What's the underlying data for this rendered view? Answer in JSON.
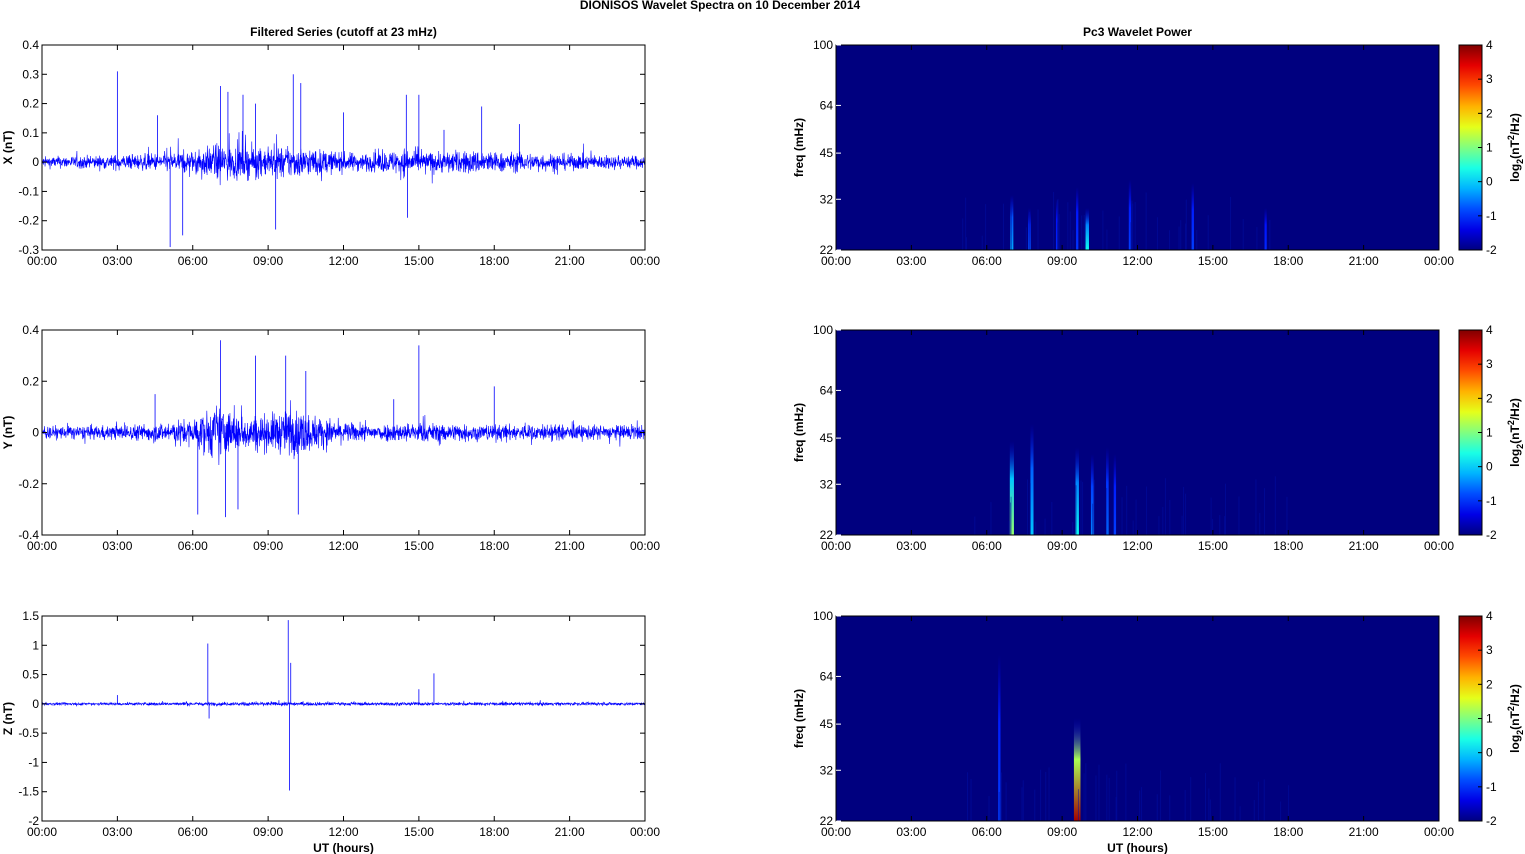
{
  "figure_title": "DIONISOS Wavelet Spectra on 10 December  2014",
  "left_title": "Filtered Series (cutoff at 23 mHz)",
  "right_title": "Pc3 Wavelet Power",
  "xlabel": "UT (hours)",
  "freq_label": "freq (mHz)",
  "colorbar_label": {
    "base": "log",
    "sub": "2",
    "pre": "(nT",
    "sup": "2",
    "post": "/Hz)"
  },
  "colors": {
    "trace": "#0000ff",
    "background": "#00007f"
  },
  "chart_data": [
    {
      "type": "line",
      "panel": "X",
      "title": "Filtered Series (cutoff at 23 mHz)",
      "ylabel": "X (nT)",
      "ylim": [
        -0.3,
        0.4
      ],
      "yticks": [
        "0.4",
        "0.3",
        "0.2",
        "0.1",
        "0",
        "-0.1",
        "-0.2",
        "-0.3"
      ],
      "xticks": [
        "00:00",
        "03:00",
        "06:00",
        "09:00",
        "12:00",
        "15:00",
        "18:00",
        "21:00",
        "00:00"
      ],
      "xlim_hours": [
        0,
        24
      ],
      "baseline_amplitude": 0.03,
      "envelope": [
        [
          0,
          0.035
        ],
        [
          2,
          0.04
        ],
        [
          4,
          0.05
        ],
        [
          5,
          0.06
        ],
        [
          6,
          0.07
        ],
        [
          7,
          0.11
        ],
        [
          8,
          0.1
        ],
        [
          9,
          0.09
        ],
        [
          10,
          0.1
        ],
        [
          11,
          0.08
        ],
        [
          12,
          0.06
        ],
        [
          13,
          0.055
        ],
        [
          14,
          0.07
        ],
        [
          14.5,
          0.09
        ],
        [
          15,
          0.06
        ],
        [
          16,
          0.07
        ],
        [
          17,
          0.07
        ],
        [
          17.7,
          0.08
        ],
        [
          18,
          0.06
        ],
        [
          19,
          0.06
        ],
        [
          20,
          0.055
        ],
        [
          21,
          0.05
        ],
        [
          22,
          0.045
        ],
        [
          24,
          0.04
        ]
      ],
      "spikes": [
        [
          3,
          0.31
        ],
        [
          4.6,
          0.16
        ],
        [
          5.1,
          -0.29
        ],
        [
          5.6,
          -0.25
        ],
        [
          7.1,
          0.26
        ],
        [
          7.4,
          0.24
        ],
        [
          8,
          0.23
        ],
        [
          8.5,
          0.2
        ],
        [
          9.3,
          -0.23
        ],
        [
          10,
          0.3
        ],
        [
          10.3,
          0.27
        ],
        [
          12,
          0.17
        ],
        [
          14.5,
          0.23
        ],
        [
          14.55,
          -0.19
        ],
        [
          15,
          0.23
        ],
        [
          16,
          0.11
        ],
        [
          17.5,
          0.19
        ],
        [
          19,
          0.13
        ]
      ]
    },
    {
      "type": "line",
      "panel": "Y",
      "title": "",
      "ylabel": "Y (nT)",
      "ylim": [
        -0.4,
        0.4
      ],
      "yticks": [
        "0.4",
        "0.2",
        "0",
        "-0.2",
        "-0.4"
      ],
      "xticks": [
        "00:00",
        "03:00",
        "06:00",
        "09:00",
        "12:00",
        "15:00",
        "18:00",
        "21:00",
        "00:00"
      ],
      "xlim_hours": [
        0,
        24
      ],
      "baseline_amplitude": 0.04,
      "envelope": [
        [
          0,
          0.045
        ],
        [
          3,
          0.05
        ],
        [
          5,
          0.07
        ],
        [
          6,
          0.1
        ],
        [
          7,
          0.2
        ],
        [
          7.5,
          0.15
        ],
        [
          8,
          0.12
        ],
        [
          9,
          0.13
        ],
        [
          10,
          0.17
        ],
        [
          11,
          0.12
        ],
        [
          12,
          0.07
        ],
        [
          13,
          0.06
        ],
        [
          15,
          0.07
        ],
        [
          17,
          0.06
        ],
        [
          20,
          0.055
        ],
        [
          24,
          0.05
        ]
      ],
      "spikes": [
        [
          6.2,
          -0.32
        ],
        [
          7.1,
          0.36
        ],
        [
          7.3,
          -0.33
        ],
        [
          7.8,
          -0.3
        ],
        [
          8.5,
          0.3
        ],
        [
          9.7,
          0.3
        ],
        [
          10.2,
          -0.32
        ],
        [
          10.5,
          0.24
        ],
        [
          15,
          0.34
        ],
        [
          14,
          0.13
        ],
        [
          4.5,
          0.15
        ],
        [
          18,
          0.18
        ]
      ]
    },
    {
      "type": "line",
      "panel": "Z",
      "title": "",
      "ylabel": "Z (nT)",
      "ylim": [
        -2,
        1.5
      ],
      "yticks": [
        "1.5",
        "1",
        "0.5",
        "0",
        "-0.5",
        "-1",
        "-1.5",
        "-2"
      ],
      "xticks": [
        "00:00",
        "03:00",
        "06:00",
        "09:00",
        "12:00",
        "15:00",
        "18:00",
        "21:00",
        "00:00"
      ],
      "xlabel": "UT (hours)",
      "xlim_hours": [
        0,
        24
      ],
      "baseline_amplitude": 0.035,
      "envelope": [
        [
          0,
          0.04
        ],
        [
          6,
          0.05
        ],
        [
          9,
          0.06
        ],
        [
          12,
          0.05
        ],
        [
          24,
          0.045
        ]
      ],
      "spikes": [
        [
          6.6,
          1.03
        ],
        [
          6.65,
          -0.25
        ],
        [
          9.8,
          1.43
        ],
        [
          9.85,
          -1.48
        ],
        [
          9.9,
          0.7
        ],
        [
          15,
          0.25
        ],
        [
          15.6,
          0.52
        ],
        [
          3,
          0.15
        ]
      ]
    },
    {
      "type": "heatmap",
      "panel": "X",
      "title": "Pc3 Wavelet Power",
      "ylabel": "freq (mHz)",
      "yticks": [
        "100",
        "64",
        "45",
        "32",
        "22"
      ],
      "ylim_mHz": [
        22,
        100
      ],
      "yscale": "log",
      "xticks": [
        "00:00",
        "03:00",
        "06:00",
        "09:00",
        "12:00",
        "15:00",
        "18:00",
        "21:00",
        "00:00"
      ],
      "colorbar": {
        "min": -2,
        "max": 4,
        "ticks": [
          "4",
          "3",
          "2",
          "1",
          "0",
          "-1",
          "-2"
        ],
        "colormap": "jet"
      },
      "features": [
        [
          7.0,
          0.8,
          33
        ],
        [
          7.7,
          0.4,
          30
        ],
        [
          8.8,
          0.2,
          32
        ],
        [
          9.6,
          0.25,
          35
        ],
        [
          10.0,
          1.2,
          30
        ],
        [
          11.7,
          0.3,
          37
        ],
        [
          14.2,
          0.3,
          36
        ],
        [
          17.1,
          0.2,
          30
        ]
      ]
    },
    {
      "type": "heatmap",
      "panel": "Y",
      "title": "",
      "ylabel": "freq (mHz)",
      "yticks": [
        "100",
        "64",
        "45",
        "32",
        "22"
      ],
      "ylim_mHz": [
        22,
        100
      ],
      "yscale": "log",
      "xticks": [
        "00:00",
        "03:00",
        "06:00",
        "09:00",
        "12:00",
        "15:00",
        "18:00",
        "21:00",
        "00:00"
      ],
      "colorbar": {
        "min": -2,
        "max": 4,
        "ticks": [
          "4",
          "3",
          "2",
          "1",
          "0",
          "-1",
          "-2"
        ],
        "colormap": "jet"
      },
      "features": [
        [
          7.0,
          1.8,
          44
        ],
        [
          7.8,
          0.9,
          50
        ],
        [
          9.6,
          1.2,
          42
        ],
        [
          10.2,
          0.6,
          40
        ],
        [
          10.8,
          0.5,
          42
        ],
        [
          11.1,
          0.3,
          40
        ]
      ]
    },
    {
      "type": "heatmap",
      "panel": "Z",
      "title": "",
      "ylabel": "freq (mHz)",
      "yticks": [
        "100",
        "64",
        "45",
        "32",
        "22"
      ],
      "ylim_mHz": [
        22,
        100
      ],
      "yscale": "log",
      "xticks": [
        "00:00",
        "03:00",
        "06:00",
        "09:00",
        "12:00",
        "15:00",
        "18:00",
        "21:00",
        "00:00"
      ],
      "xlabel": "UT (hours)",
      "colorbar": {
        "min": -2,
        "max": 4,
        "ticks": [
          "4",
          "3",
          "2",
          "1",
          "0",
          "-1",
          "-2"
        ],
        "colormap": "jet"
      },
      "features": [
        [
          6.5,
          0.3,
          75
        ],
        [
          9.6,
          3.8,
          47
        ]
      ]
    }
  ]
}
